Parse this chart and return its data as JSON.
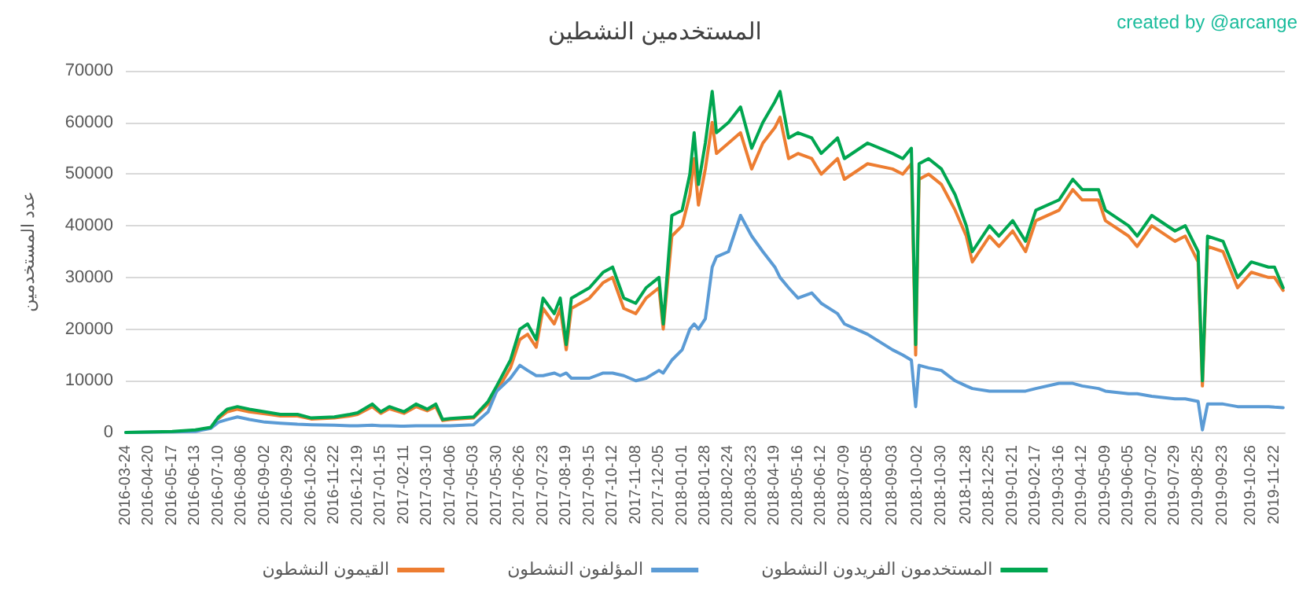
{
  "chart_data": {
    "type": "line",
    "title": "المستخدمين النشطين",
    "ylabel": "عدد المستخدمين",
    "annotations": [
      "created by @arcange"
    ],
    "xlim": [
      "2016-03-24",
      "2019-12-04"
    ],
    "xticks": [
      "2016-03-24",
      "2016-04-20",
      "2016-05-17",
      "2016-06-13",
      "2016-07-10",
      "2016-08-06",
      "2016-09-02",
      "2016-09-29",
      "2016-10-26",
      "2016-11-22",
      "2016-12-19",
      "2017-01-15",
      "2017-02-11",
      "2017-03-10",
      "2017-04-06",
      "2017-05-03",
      "2017-05-30",
      "2017-06-26",
      "2017-07-23",
      "2017-08-19",
      "2017-09-15",
      "2017-10-12",
      "2017-11-08",
      "2017-12-05",
      "2018-01-01",
      "2018-01-28",
      "2018-02-24",
      "2018-03-23",
      "2018-04-19",
      "2018-05-16",
      "2018-06-12",
      "2018-07-09",
      "2018-08-05",
      "2018-09-03",
      "2018-10-02",
      "2018-10-30",
      "2018-11-28",
      "2018-12-25",
      "2019-01-21",
      "2019-02-17",
      "2019-03-16",
      "2019-04-12",
      "2019-05-09",
      "2019-06-05",
      "2019-07-02",
      "2019-07-29",
      "2019-08-25",
      "2019-09-23",
      "2019-10-26",
      "2019-11-22"
    ],
    "ylim": [
      0,
      70000
    ],
    "yticks": [
      0,
      10000,
      20000,
      30000,
      40000,
      50000,
      60000,
      70000
    ],
    "grid": "y",
    "legend": "bottom",
    "marker": "none",
    "line_style": "solid",
    "x": [
      "2016-03-24",
      "2016-05-17",
      "2016-06-13",
      "2016-07-01",
      "2016-07-10",
      "2016-07-20",
      "2016-08-01",
      "2016-08-15",
      "2016-09-02",
      "2016-09-20",
      "2016-10-10",
      "2016-10-26",
      "2016-11-22",
      "2016-12-10",
      "2016-12-19",
      "2017-01-05",
      "2017-01-15",
      "2017-01-25",
      "2017-02-11",
      "2017-02-25",
      "2017-03-10",
      "2017-03-20",
      "2017-03-28",
      "2017-04-06",
      "2017-05-03",
      "2017-05-20",
      "2017-05-30",
      "2017-06-15",
      "2017-06-26",
      "2017-07-05",
      "2017-07-15",
      "2017-07-23",
      "2017-08-05",
      "2017-08-12",
      "2017-08-19",
      "2017-08-25",
      "2017-09-15",
      "2017-10-01",
      "2017-10-12",
      "2017-10-25",
      "2017-11-08",
      "2017-11-20",
      "2017-12-05",
      "2017-12-10",
      "2017-12-20",
      "2018-01-01",
      "2018-01-10",
      "2018-01-15",
      "2018-01-20",
      "2018-01-28",
      "2018-02-05",
      "2018-02-10",
      "2018-02-24",
      "2018-03-10",
      "2018-03-23",
      "2018-04-05",
      "2018-04-19",
      "2018-04-25",
      "2018-05-05",
      "2018-05-16",
      "2018-06-01",
      "2018-06-12",
      "2018-07-01",
      "2018-07-09",
      "2018-08-05",
      "2018-09-03",
      "2018-09-15",
      "2018-09-25",
      "2018-09-30",
      "2018-10-04",
      "2018-10-15",
      "2018-10-30",
      "2018-11-15",
      "2018-11-28",
      "2018-12-05",
      "2018-12-25",
      "2019-01-05",
      "2019-01-21",
      "2019-02-05",
      "2019-02-17",
      "2019-03-16",
      "2019-04-01",
      "2019-04-12",
      "2019-05-01",
      "2019-05-09",
      "2019-06-05",
      "2019-06-15",
      "2019-07-02",
      "2019-07-29",
      "2019-08-10",
      "2019-08-25",
      "2019-08-30",
      "2019-09-05",
      "2019-09-23",
      "2019-10-10",
      "2019-10-26",
      "2019-11-15",
      "2019-11-22",
      "2019-12-02"
    ],
    "series": [
      {
        "name": "القيمون النشطون",
        "color": "#ed7d31",
        "values": [
          null,
          null,
          null,
          null,
          2700,
          4000,
          4500,
          4000,
          3600,
          3200,
          3200,
          2600,
          2800,
          3200,
          3500,
          5000,
          3700,
          4600,
          3700,
          5000,
          4200,
          5000,
          2300,
          2500,
          2800,
          5500,
          8000,
          12500,
          18000,
          19000,
          16500,
          24000,
          21000,
          24000,
          16000,
          24000,
          26000,
          29000,
          30000,
          24000,
          23000,
          26000,
          28000,
          20000,
          38000,
          40000,
          46000,
          53000,
          44000,
          51000,
          60000,
          54000,
          56000,
          58000,
          51000,
          56000,
          59000,
          61000,
          53000,
          54000,
          53000,
          50000,
          53000,
          49000,
          52000,
          51000,
          50000,
          52000,
          15000,
          49000,
          50000,
          48000,
          43000,
          38000,
          33000,
          38000,
          36000,
          39000,
          35000,
          41000,
          43000,
          47000,
          45000,
          45000,
          41000,
          38000,
          36000,
          40000,
          37000,
          38000,
          33000,
          9000,
          36000,
          35000,
          28000,
          31000,
          30000,
          30000,
          27500
        ]
      },
      {
        "name": "المؤلفون النشطون",
        "color": "#5b9bd5",
        "values": [
          0,
          100,
          200,
          800,
          2000,
          2500,
          3000,
          2500,
          2000,
          1800,
          1600,
          1500,
          1400,
          1300,
          1300,
          1400,
          1300,
          1300,
          1200,
          1300,
          1300,
          1300,
          1300,
          1300,
          1500,
          4000,
          8000,
          10500,
          13000,
          12000,
          11000,
          11000,
          11500,
          11000,
          11500,
          10500,
          10500,
          11500,
          11500,
          11000,
          10000,
          10500,
          12000,
          11500,
          14000,
          16000,
          20000,
          21000,
          20000,
          22000,
          32000,
          34000,
          35000,
          42000,
          38000,
          35000,
          32000,
          30000,
          28000,
          26000,
          27000,
          25000,
          23000,
          21000,
          19000,
          16000,
          15000,
          14000,
          5000,
          13000,
          12500,
          12000,
          10000,
          9000,
          8500,
          8000,
          8000,
          8000,
          8000,
          8500,
          9500,
          9500,
          9000,
          8500,
          8000,
          7500,
          7500,
          7000,
          6500,
          6500,
          6000,
          500,
          5500,
          5500,
          5000,
          5000,
          5000,
          4900,
          4800
        ]
      },
      {
        "name": "المستخدمون الفريدون النشطون",
        "color": "#00a650",
        "values": [
          0,
          200,
          500,
          1000,
          3000,
          4500,
          5000,
          4500,
          4000,
          3500,
          3500,
          2800,
          3000,
          3500,
          3800,
          5500,
          4000,
          5000,
          4000,
          5500,
          4500,
          5500,
          2500,
          2700,
          3000,
          6000,
          9000,
          14000,
          20000,
          21000,
          18000,
          26000,
          23000,
          26000,
          17000,
          26000,
          28000,
          31000,
          32000,
          26000,
          25000,
          28000,
          30000,
          21000,
          42000,
          43000,
          50000,
          58000,
          48000,
          56000,
          66000,
          58000,
          60000,
          63000,
          55000,
          60000,
          64000,
          66000,
          57000,
          58000,
          57000,
          54000,
          57000,
          53000,
          56000,
          54000,
          53000,
          55000,
          17000,
          52000,
          53000,
          51000,
          46000,
          40000,
          35000,
          40000,
          38000,
          41000,
          37000,
          43000,
          45000,
          49000,
          47000,
          47000,
          43000,
          40000,
          38000,
          42000,
          39000,
          40000,
          35000,
          10000,
          38000,
          37000,
          30000,
          33000,
          32000,
          32000,
          28000
        ]
      }
    ]
  }
}
